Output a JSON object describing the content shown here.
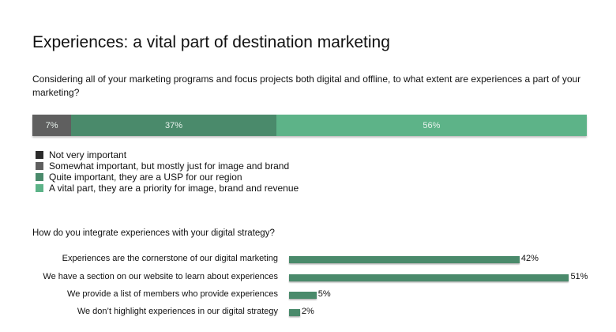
{
  "title": "Experiences: a vital part of destination marketing",
  "chart_data": [
    {
      "type": "bar",
      "orientation": "horizontal-stacked",
      "question": "Considering all of your marketing programs and focus projects both digital and offline, to what extent are experiences a part of your marketing?",
      "series": [
        {
          "name": "Not very important",
          "value": 0,
          "label": "",
          "color": "#2b2b2b"
        },
        {
          "name": "Somewhat important, but mostly just for image and brand",
          "value": 7,
          "label": "7%",
          "color": "#5f5f5f"
        },
        {
          "name": "Quite important, they are a USP for our region",
          "value": 37,
          "label": "37%",
          "color": "#4a8a6b"
        },
        {
          "name": "A vital part, they are a priority for image, brand and revenue",
          "value": 56,
          "label": "56%",
          "color": "#5db388"
        }
      ],
      "legend": "bottom-left"
    },
    {
      "type": "bar",
      "orientation": "horizontal",
      "question": "How do you integrate experiences with your digital strategy?",
      "categories": [
        "Experiences are the cornerstone of our digital marketing",
        "We have a section on our website to learn about experiences",
        "We provide a list of members who provide experiences",
        "We don’t highlight experiences in our digital strategy"
      ],
      "values": [
        42,
        51,
        5,
        2
      ],
      "labels": [
        "42%",
        "51%",
        "5%",
        "2%"
      ],
      "color": "#4a8a6b"
    }
  ]
}
